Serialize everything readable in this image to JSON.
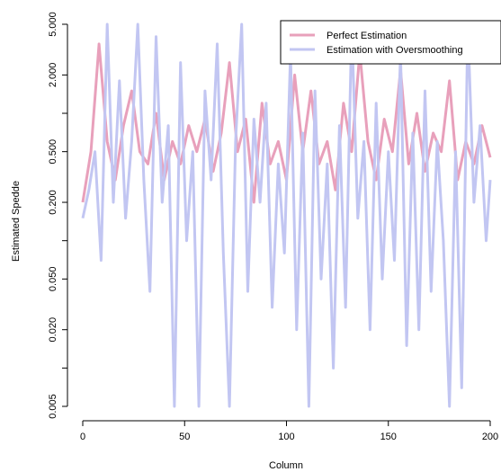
{
  "chart_data": {
    "type": "line",
    "xlabel": "Column",
    "ylabel": "Estimated Spedde",
    "xlim": [
      0,
      200
    ],
    "ylim": [
      0.005,
      5.0
    ],
    "y_scale": "log",
    "x_ticks": [
      0,
      50,
      100,
      150,
      200
    ],
    "y_ticks": [
      {
        "value": 0.005,
        "label": "0.005"
      },
      {
        "value": 0.01,
        "label": ""
      },
      {
        "value": 0.02,
        "label": "0.020"
      },
      {
        "value": 0.05,
        "label": "0.050"
      },
      {
        "value": 0.1,
        "label": ""
      },
      {
        "value": 0.2,
        "label": "0.200"
      },
      {
        "value": 0.5,
        "label": "0.500"
      },
      {
        "value": 1.0,
        "label": ""
      },
      {
        "value": 2.0,
        "label": "2.000"
      },
      {
        "value": 5.0,
        "label": "5.000"
      }
    ],
    "legend_position": "top-right",
    "grid": false,
    "series": [
      {
        "name": "Perfect Estimation",
        "color": "#e8a0bb",
        "x": [
          0,
          4,
          8,
          12,
          16,
          20,
          24,
          28,
          32,
          36,
          40,
          44,
          48,
          52,
          56,
          60,
          64,
          68,
          72,
          76,
          80,
          84,
          88,
          92,
          96,
          100,
          104,
          108,
          112,
          116,
          120,
          124,
          128,
          132,
          136,
          140,
          144,
          148,
          152,
          156,
          160,
          164,
          168,
          172,
          176,
          180,
          184,
          188,
          192,
          196,
          200
        ],
        "y": [
          0.2,
          0.5,
          3.5,
          0.6,
          0.3,
          0.8,
          1.5,
          0.5,
          0.4,
          1.0,
          0.3,
          0.6,
          0.4,
          0.8,
          0.5,
          0.9,
          0.35,
          0.7,
          2.5,
          0.5,
          0.9,
          0.2,
          1.2,
          0.4,
          0.6,
          0.3,
          2.0,
          0.5,
          1.5,
          0.4,
          0.6,
          0.25,
          1.2,
          0.5,
          3.0,
          0.6,
          0.3,
          0.9,
          0.5,
          2.2,
          0.4,
          1.0,
          0.35,
          0.7,
          0.5,
          1.8,
          0.3,
          0.6,
          0.4,
          0.8,
          0.45
        ]
      },
      {
        "name": "Estimation with Oversmoothing",
        "color": "#c2c6f2",
        "x": [
          0,
          3,
          6,
          9,
          12,
          15,
          18,
          21,
          24,
          27,
          30,
          33,
          36,
          39,
          42,
          45,
          48,
          51,
          54,
          57,
          60,
          63,
          66,
          69,
          72,
          75,
          78,
          81,
          84,
          87,
          90,
          93,
          96,
          99,
          102,
          105,
          108,
          111,
          114,
          117,
          120,
          123,
          126,
          129,
          132,
          135,
          138,
          141,
          144,
          147,
          150,
          153,
          156,
          159,
          162,
          165,
          168,
          171,
          174,
          177,
          180,
          183,
          186,
          189,
          192,
          195,
          198,
          200
        ],
        "y": [
          0.15,
          0.25,
          0.5,
          0.07,
          5.0,
          0.2,
          1.8,
          0.15,
          0.6,
          5.0,
          0.3,
          0.04,
          4.0,
          0.2,
          0.8,
          0.005,
          2.5,
          0.1,
          0.5,
          0.005,
          1.5,
          0.3,
          3.5,
          0.08,
          0.005,
          0.6,
          5.0,
          0.04,
          0.9,
          0.2,
          1.2,
          0.03,
          0.4,
          0.08,
          3.0,
          0.02,
          0.7,
          0.005,
          1.5,
          0.05,
          0.4,
          0.01,
          0.8,
          0.03,
          5.0,
          0.15,
          0.6,
          0.02,
          1.2,
          0.05,
          0.5,
          0.07,
          3.0,
          0.015,
          0.7,
          0.02,
          1.5,
          0.04,
          0.6,
          0.1,
          0.005,
          0.5,
          0.007,
          5.0,
          0.2,
          0.8,
          0.1,
          0.3
        ]
      }
    ]
  }
}
